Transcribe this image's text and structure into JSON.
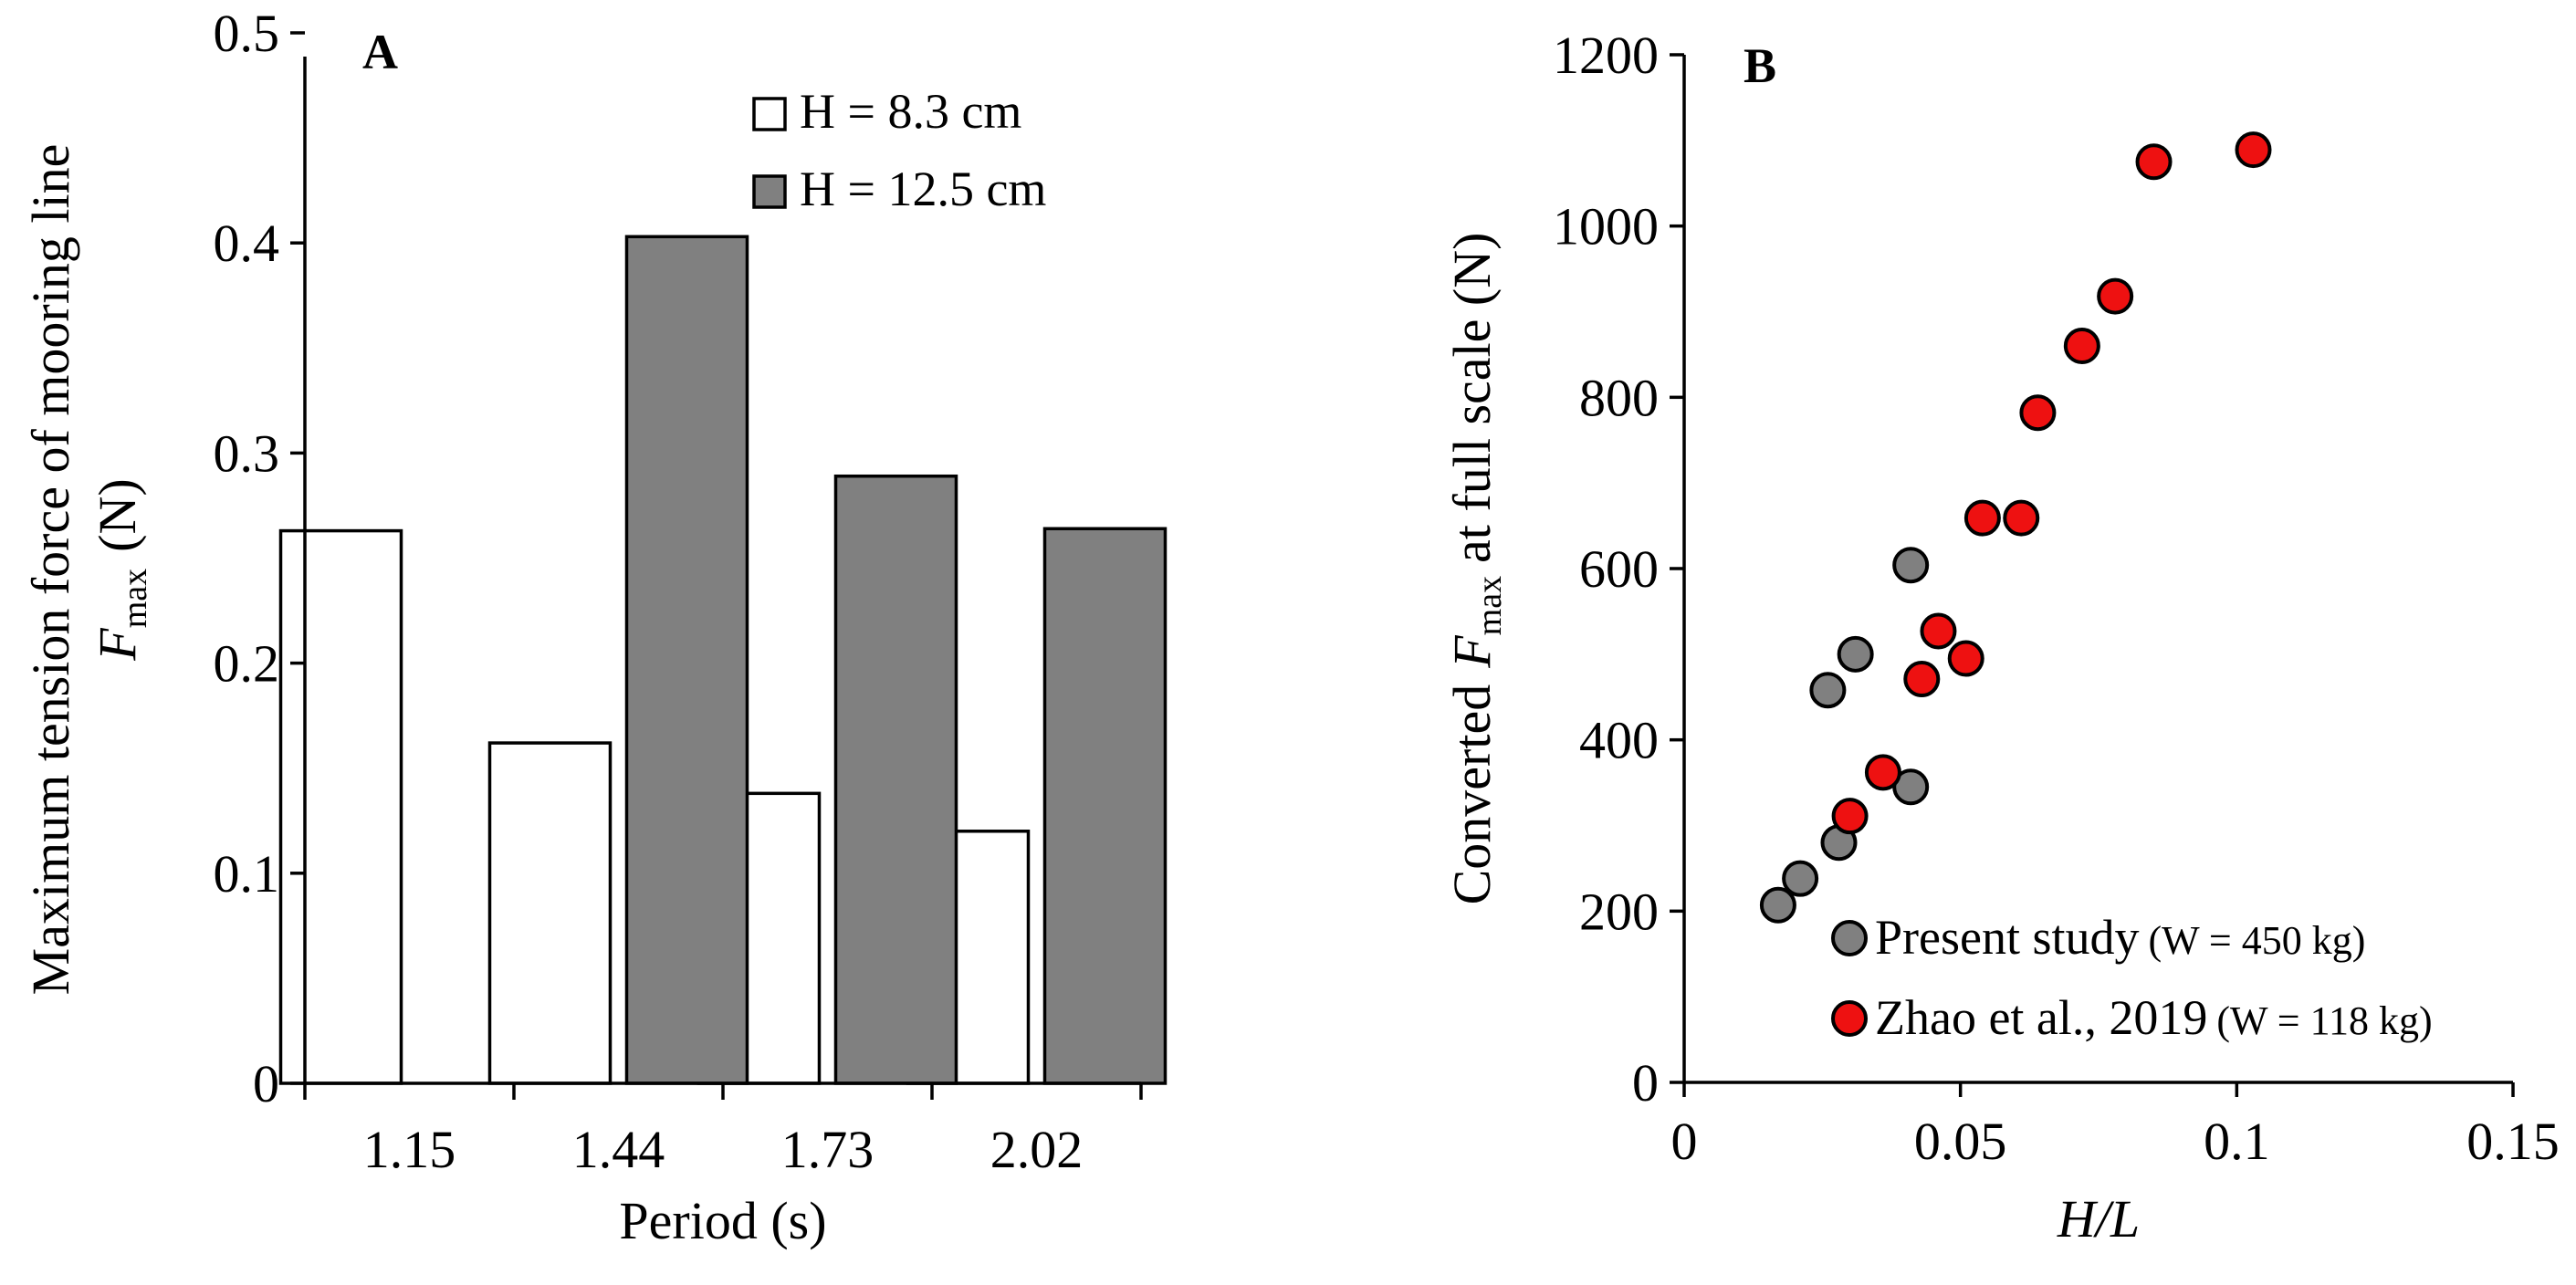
{
  "chart_data": [
    {
      "panel": "A",
      "type": "bar",
      "xlabel": "Period (s)",
      "ylabel_line1": "Maximum tension force of mooring line",
      "ylabel_symbol": "F",
      "ylabel_subscript": "max",
      "ylabel_unit": "(N)",
      "categories": [
        "1.15",
        "1.44",
        "1.73",
        "2.02"
      ],
      "series": [
        {
          "name": "H = 8.3 cm",
          "color": "#ffffff",
          "values": [
            0.263,
            0.162,
            0.138,
            0.12
          ]
        },
        {
          "name": "H = 12.5 cm",
          "color": "#808080",
          "values": [
            null,
            0.403,
            0.289,
            0.264
          ]
        }
      ],
      "ylim": [
        0,
        0.5
      ],
      "yticks": [
        "0",
        "0.1",
        "0.2",
        "0.3",
        "0.4",
        "0.5"
      ],
      "legend_position": "top-right"
    },
    {
      "panel": "B",
      "type": "scatter",
      "xlabel": "H/L",
      "ylabel_prefix": "Converted",
      "ylabel_symbol": "F",
      "ylabel_subscript": "max",
      "ylabel_suffix": "at full scale  (N)",
      "xlim": [
        0,
        0.15
      ],
      "ylim": [
        0,
        1200
      ],
      "xticks": [
        "0",
        "0.05",
        "0.1",
        "0.15"
      ],
      "yticks": [
        "0",
        "200",
        "400",
        "600",
        "800",
        "1000",
        "1200"
      ],
      "series": [
        {
          "name": "Present study",
          "note": "(W = 450 kg)",
          "color": "#808080",
          "points": [
            [
              0.017,
              207
            ],
            [
              0.021,
              238
            ],
            [
              0.028,
              280
            ],
            [
              0.026,
              458
            ],
            [
              0.031,
              500
            ],
            [
              0.041,
              345
            ],
            [
              0.041,
              604
            ]
          ]
        },
        {
          "name": "Zhao et al., 2019",
          "note": "(W = 118 kg)",
          "color": "#ee1111",
          "points": [
            [
              0.03,
              311
            ],
            [
              0.036,
              362
            ],
            [
              0.043,
              471
            ],
            [
              0.046,
              527
            ],
            [
              0.051,
              495
            ],
            [
              0.054,
              659
            ],
            [
              0.061,
              659
            ],
            [
              0.064,
              782
            ],
            [
              0.072,
              860
            ],
            [
              0.078,
              918
            ],
            [
              0.085,
              1075
            ],
            [
              0.103,
              1089
            ]
          ]
        }
      ],
      "legend_position": "bottom-right"
    }
  ]
}
